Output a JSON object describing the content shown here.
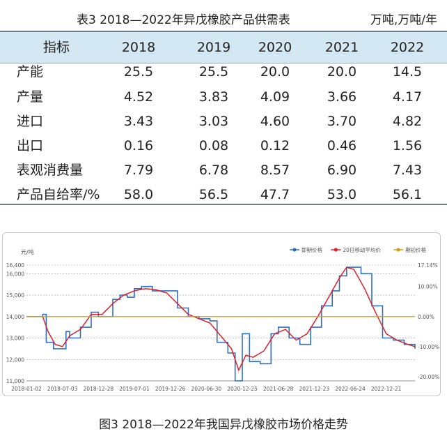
{
  "table": {
    "title": "表3  2018—2022年异戊橡胶产品供需表",
    "unit": "万吨,万吨/年",
    "header_label": "指标",
    "years": [
      "2018",
      "2019",
      "2020",
      "2021",
      "2022"
    ],
    "rows": [
      {
        "label": "产能",
        "values": [
          "25.5",
          "25.5",
          "20.0",
          "20.0",
          "14.5"
        ]
      },
      {
        "label": "产量",
        "values": [
          "4.52",
          "3.83",
          "4.09",
          "3.66",
          "4.17"
        ]
      },
      {
        "label": "进口",
        "values": [
          "3.43",
          "3.03",
          "4.60",
          "3.70",
          "4.82"
        ]
      },
      {
        "label": "出口",
        "values": [
          "0.16",
          "0.08",
          "0.12",
          "0.46",
          "1.56"
        ]
      },
      {
        "label": "表观消费量",
        "values": [
          "7.79",
          "6.78",
          "8.57",
          "6.90",
          "7.43"
        ]
      },
      {
        "label": "产品自给率/%",
        "values": [
          "58.0",
          "56.5",
          "47.7",
          "53.0",
          "56.1"
        ]
      }
    ]
  },
  "chart_data": {
    "type": "line",
    "ylabel": "元/吨",
    "ylim": [
      11000,
      16400
    ],
    "y_ticks": [
      "11,000",
      "12,000",
      "13,000",
      "14,000",
      "15,000",
      "16,000",
      "16,400"
    ],
    "y2_ticks": [
      "17.14%",
      "10.00%",
      "0.00%",
      "-10.00%",
      "-20.00%"
    ],
    "x_ticks": [
      "2018-01-02",
      "2018-07-03",
      "2018-12-28",
      "2019-07-01",
      "2019-12-26",
      "2020-06-30",
      "2020-12-25",
      "2021-06-28",
      "2021-12-23",
      "2022-06-24",
      "2022-12-21"
    ],
    "legend_position": "top-right",
    "colors": {
      "period": "#2e6fc4",
      "ma20": "#e01f2a",
      "base": "#d4a017"
    },
    "series": [
      {
        "name": "即期价格",
        "x": [
          0.0,
          0.3,
          0.45,
          0.55,
          0.75,
          0.9,
          1.1,
          1.2,
          1.5,
          1.8,
          2.0,
          2.2,
          2.4,
          2.6,
          2.8,
          3.0,
          3.2,
          3.5,
          3.8,
          4.2,
          4.5,
          4.8,
          5.1,
          5.3,
          5.6,
          5.8,
          6.0,
          6.2,
          6.5,
          6.8,
          7.0,
          7.3,
          7.6,
          7.9,
          8.2,
          8.5,
          8.7,
          8.9,
          9.1,
          9.3,
          9.6,
          9.9,
          10.2,
          10.5,
          10.8
        ],
        "values": [
          14000,
          14000,
          14100,
          12800,
          12500,
          12500,
          13300,
          13000,
          13500,
          14200,
          14000,
          14000,
          14800,
          15000,
          14900,
          15300,
          15400,
          15200,
          15200,
          14400,
          14000,
          13900,
          13800,
          12800,
          12300,
          11000,
          13200,
          11900,
          11800,
          13200,
          13500,
          13000,
          12700,
          13500,
          14500,
          15200,
          15900,
          16300,
          16300,
          16000,
          14500,
          13000,
          12900,
          12700,
          12500
        ]
      },
      {
        "name": "20日移动平均价",
        "x": [
          0.0,
          0.3,
          0.45,
          0.6,
          0.8,
          1.0,
          1.2,
          1.5,
          1.8,
          2.1,
          2.4,
          2.7,
          3.0,
          3.3,
          3.6,
          3.9,
          4.2,
          4.5,
          4.8,
          5.1,
          5.4,
          5.7,
          5.9,
          6.1,
          6.3,
          6.6,
          6.9,
          7.2,
          7.5,
          7.8,
          8.1,
          8.4,
          8.7,
          8.9,
          9.1,
          9.4,
          9.7,
          10.0,
          10.3,
          10.6,
          10.8
        ],
        "values": [
          14000,
          14000,
          14000,
          13300,
          12700,
          12600,
          13100,
          13400,
          14100,
          14100,
          14600,
          15000,
          15200,
          15300,
          15250,
          15100,
          14600,
          14100,
          13900,
          13700,
          13100,
          12500,
          11500,
          12200,
          12100,
          12400,
          13200,
          13400,
          12900,
          13200,
          14000,
          14900,
          15800,
          16300,
          16200,
          15300,
          14200,
          13200,
          12900,
          12700,
          12600
        ]
      },
      {
        "name": "期初价格",
        "x": [
          0.0,
          10.8
        ],
        "values": [
          14000,
          14000
        ]
      }
    ]
  },
  "figure_caption": "图3  2018—2022年我国异戊橡胶市场价格走势"
}
